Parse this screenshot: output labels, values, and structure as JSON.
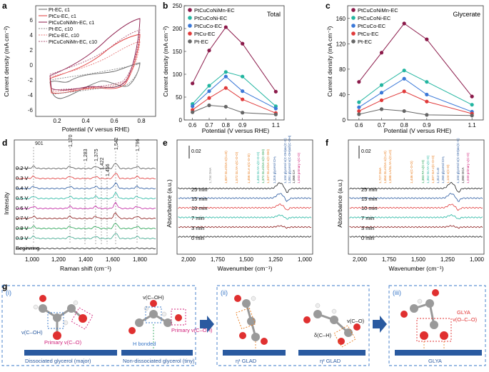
{
  "panels": {
    "a": {
      "letter": "a",
      "xlabel": "Potential (V versus RHE)",
      "ylabel": "Current density (mA cm⁻²)",
      "xticks": [
        "0.2",
        "0.4",
        "0.6",
        "0.8"
      ],
      "yticks": [
        "6",
        "4",
        "2",
        "0",
        "-2",
        "-4",
        "-6"
      ],
      "legend": [
        "Pt-EC, c1",
        "PtCu-EC, c1",
        "PtCuCoNiMn-EC, c1",
        "Pt-EC, c10",
        "PtCu-EC, c10",
        "PtCuCoNiMn-EC, c10"
      ]
    },
    "b": {
      "letter": "b",
      "title": "Total",
      "xlabel": "Potential (V versus RHE)",
      "ylabel": "Current density (mA cm⁻²)"
    },
    "c": {
      "letter": "c",
      "title": "Glycerate",
      "xlabel": "Potential (V versus RHE)",
      "ylabel": "Current density (mA cm⁻²)"
    },
    "d": {
      "letter": "d",
      "xlabel": "Raman shift (cm⁻¹)",
      "ylabel": "Intensity",
      "peaks": [
        "901",
        "1,170",
        "1,283",
        "1,375",
        "1,422",
        "1,456",
        "1,542",
        "1,796"
      ],
      "traces": [
        "0.2 V",
        "0.3 V",
        "0.4 V",
        "0.5 V",
        "0.6 V",
        "0.7 V",
        "0.8 V",
        "0.9 V",
        "Beginning"
      ],
      "xticks": [
        "1,000",
        "1,200",
        "1,400",
        "1,600",
        "1,800"
      ]
    },
    "e": {
      "letter": "e",
      "xlabel": "Wavenumber (cm⁻¹)",
      "ylabel": "Absorbance (a.u.)",
      "scale": "0.02",
      "times": [
        "25 min",
        "15 min",
        "10 min",
        "7 min",
        "3 min",
        "0 min"
      ],
      "xticks": [
        "2,000",
        "1,750",
        "1,500",
        "1,250",
        "1,000"
      ],
      "annotations": [
        "1,734 DHA",
        "1,657 GLA/GA v(C=O)",
        "1,572 GLYA v(C-O-O)",
        "1,456 GLA v(C-O-O)",
        "1,403 GLYA v(C-O-O)",
        "1,372 GLA/GA v(C-OH)",
        "1,347 GLA/GA v(C-OH)",
        "1,316 glycerol CH₂",
        "1,104 glycerol v(C-OH)&ν(C-C)",
        "1,081 glycerol v(C-OH)&δ(C-OH)",
        "1,068 CA",
        "1,043 primary v(C-O)"
      ]
    },
    "f": {
      "letter": "f",
      "xlabel": "Wavenumber (cm⁻¹)",
      "ylabel": "Absorbance (a.u.)",
      "scale": "0.02",
      "times": [
        "25 min",
        "15 min",
        "10 min",
        "7 min",
        "3 min",
        "0 min"
      ],
      "xticks": [
        "2,000",
        "1,750",
        "1,500",
        "1,250",
        "1,000"
      ],
      "annotations": [
        "1,727 DHA",
        "1,654 GLA/GA v(C=O)",
        "1,598 LA/GLYA v(C=O)",
        "1,446 v(C-O-O)",
        "1,383 FA v(C-H)",
        "1,352 GLYA v(C-O)",
        "1,307 GA v(C-O-O)",
        "1,312 C=O",
        "1,260 glycerol CH₂",
        "1,124 v(C-O)",
        "1,104 glycerol v(C-OH)&ν(C-C)",
        "1,080 OCA",
        "1,040 primary v(C-O)"
      ]
    },
    "g": {
      "letter": "g",
      "i": {
        "num": "(i)",
        "v_c_oh": "v(C–OH)",
        "primary_v_co": "Primary v(C–O)",
        "dissociated": "Dissociated glycerol (major)",
        "v_c_oh2": "v(C–OH)",
        "h_bonded": "H bonded",
        "primary_v_c_oh": "Primary v(C–OH)",
        "non_dissociated": "Non-dissociated glycerol (tiny)"
      },
      "ii": {
        "num": "(ii)",
        "eta1": "η¹ GLAD",
        "eta2": "η² GLAD",
        "v_co": "v(C–O)",
        "delta_ch": "δ(C–H)"
      },
      "iii": {
        "num": "(iii)",
        "glya": "GLYA",
        "glya_v": "v(O–C–O)",
        "label": "GLYA"
      }
    }
  },
  "colors": {
    "pt": "#666666",
    "ptcu": "#e03a3a",
    "hea": "#8b1a4a",
    "ptcuco": "#3a78d8",
    "ptcuconi": "#22b5a0",
    "box": "#3a78c8",
    "primary": "#d0207a",
    "orange": "#e87a1a",
    "bar": "#2a5aa0"
  },
  "chart_data": [
    {
      "type": "line",
      "panel": "b",
      "title": "Total",
      "x": [
        0.6,
        0.7,
        0.8,
        0.9,
        1.1
      ],
      "xlabel": "Potential (V versus RHE)",
      "ylabel": "Current density (mA cm⁻²)",
      "ylim": [
        0,
        250
      ],
      "yticks": [
        0,
        50,
        100,
        150,
        200,
        250
      ],
      "series": [
        {
          "name": "PtCuCoNiMn-EC",
          "values": [
            80,
            152,
            203,
            167,
            62
          ]
        },
        {
          "name": "PtCuCoNi-EC",
          "values": [
            35,
            75,
            105,
            95,
            30
          ]
        },
        {
          "name": "PtCuCo-EC",
          "values": [
            30,
            63,
            95,
            63,
            25
          ]
        },
        {
          "name": "PtCu-EC",
          "values": [
            22,
            48,
            70,
            45,
            15
          ]
        },
        {
          "name": "Pt-EC",
          "values": [
            17,
            32,
            29,
            16,
            12
          ]
        }
      ]
    },
    {
      "type": "line",
      "panel": "c",
      "title": "Glycerate",
      "x": [
        0.6,
        0.7,
        0.8,
        0.9,
        1.1
      ],
      "xlabel": "Potential (V versus RHE)",
      "ylabel": "Current density (mA cm⁻²)",
      "ylim": [
        0,
        180
      ],
      "yticks": [
        0,
        40,
        80,
        120,
        160
      ],
      "series": [
        {
          "name": "PtCuCoNiMn-EC",
          "values": [
            60,
            106,
            152,
            127,
            37
          ]
        },
        {
          "name": "PtCuCoNi-EC",
          "values": [
            28,
            55,
            78,
            60,
            24
          ]
        },
        {
          "name": "PtCuCo-EC",
          "values": [
            20,
            43,
            65,
            40,
            13
          ]
        },
        {
          "name": "PtCu-EC",
          "values": [
            14,
            31,
            45,
            29,
            10
          ]
        },
        {
          "name": "Pt-EC",
          "values": [
            9,
            17,
            14,
            8,
            7
          ]
        }
      ]
    }
  ]
}
